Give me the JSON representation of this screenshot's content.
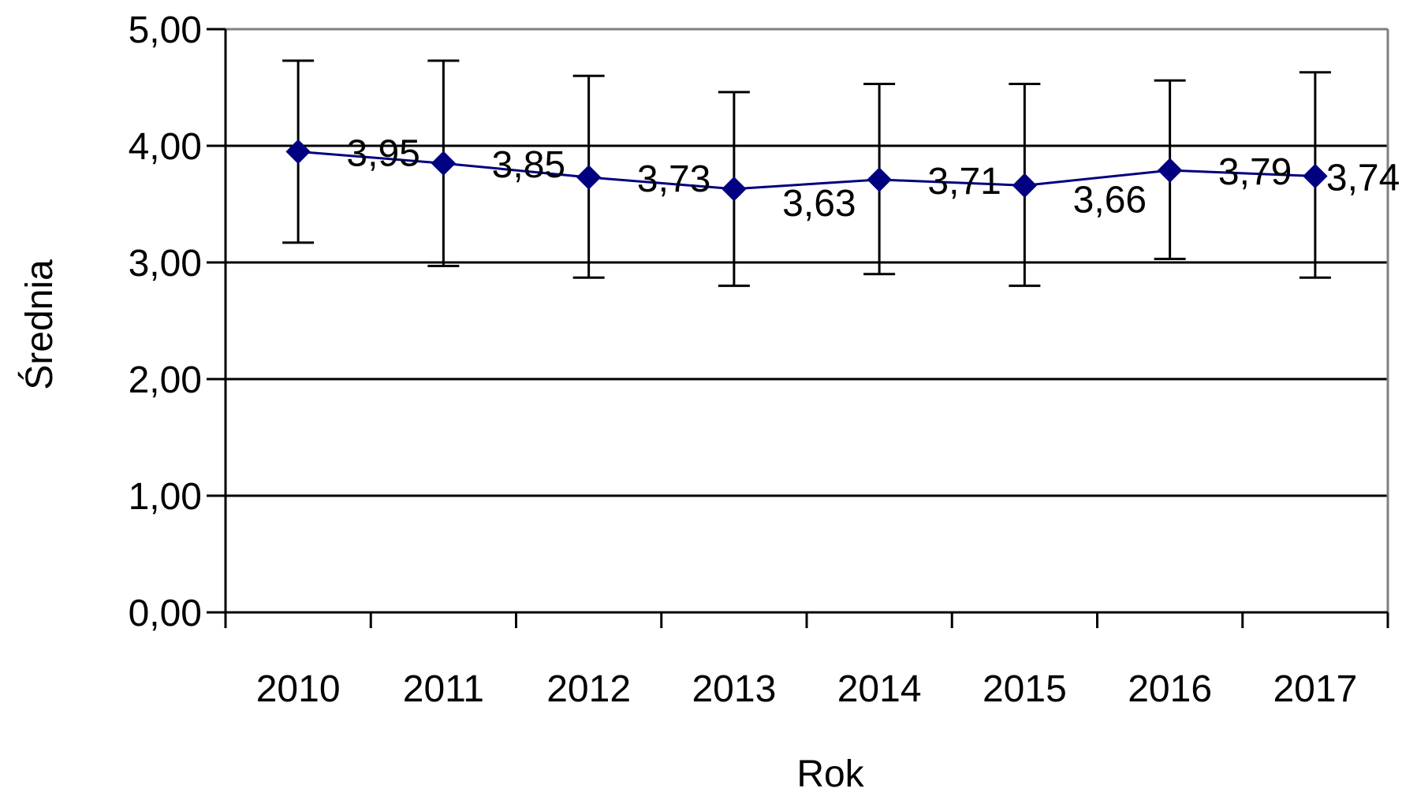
{
  "chart_data": {
    "type": "line",
    "title": "",
    "xlabel": "Rok",
    "ylabel": "Średnia",
    "categories": [
      "2010",
      "2011",
      "2012",
      "2013",
      "2014",
      "2015",
      "2016",
      "2017"
    ],
    "series": [
      {
        "values": [
          3.95,
          3.85,
          3.73,
          3.63,
          3.71,
          3.66,
          3.79,
          3.74
        ],
        "data_labels": [
          "3,95",
          "3,85",
          "3,73",
          "3,63",
          "3,71",
          "3,66",
          "3,79",
          "3,74"
        ],
        "error_upper": [
          4.73,
          4.73,
          4.6,
          4.46,
          4.53,
          4.53,
          4.56,
          4.63
        ],
        "error_lower": [
          3.17,
          2.97,
          2.87,
          2.8,
          2.9,
          2.8,
          3.03,
          2.87
        ],
        "color": "#000080",
        "marker": "diamond"
      }
    ],
    "ylim": [
      0,
      5
    ],
    "yticks": [
      0,
      1,
      2,
      3,
      4,
      5
    ],
    "ytick_labels": [
      "0,00",
      "1,00",
      "2,00",
      "3,00",
      "4,00",
      "5,00"
    ],
    "grid": true,
    "legend": "none",
    "colors": {
      "series_line": "#000080",
      "gridline": "#000000",
      "error_bar": "#000000",
      "plot_border": "#808080",
      "axis": "#000000"
    }
  }
}
